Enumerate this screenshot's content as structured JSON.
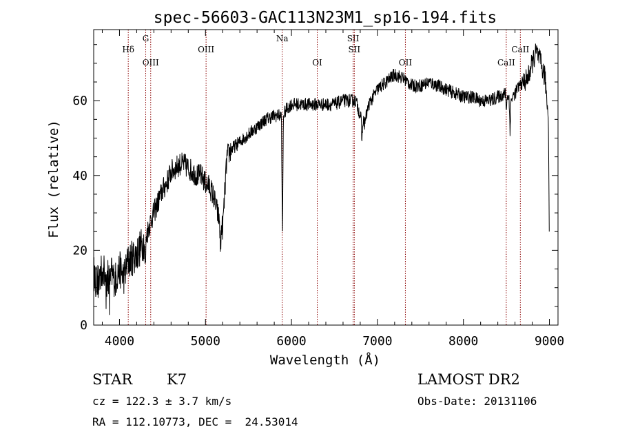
{
  "chart_data": {
    "type": "line",
    "title": "spec-56603-GAC113N23M1_sp16-194.fits",
    "xlabel": "Wavelength (Å)",
    "ylabel": "Flux (relative)",
    "xlim": [
      3700,
      9100
    ],
    "ylim": [
      0,
      79
    ],
    "xticks": [
      4000,
      5000,
      6000,
      7000,
      8000,
      9000
    ],
    "yticks": [
      0,
      20,
      40,
      60
    ],
    "line_color": "#000000",
    "marker_color": "#8b0000",
    "spectrum_anchors": [
      [
        3700,
        14
      ],
      [
        3740,
        11
      ],
      [
        3800,
        15
      ],
      [
        3850,
        12
      ],
      [
        3900,
        14
      ],
      [
        3950,
        12
      ],
      [
        4000,
        15
      ],
      [
        4050,
        13
      ],
      [
        4100,
        17
      ],
      [
        4150,
        18
      ],
      [
        4200,
        19
      ],
      [
        4250,
        21
      ],
      [
        4300,
        23
      ],
      [
        4350,
        27
      ],
      [
        4400,
        30
      ],
      [
        4450,
        33
      ],
      [
        4500,
        36
      ],
      [
        4550,
        38
      ],
      [
        4600,
        41
      ],
      [
        4650,
        42
      ],
      [
        4700,
        43
      ],
      [
        4750,
        43
      ],
      [
        4800,
        42
      ],
      [
        4850,
        41
      ],
      [
        4900,
        40
      ],
      [
        4950,
        40
      ],
      [
        5000,
        38
      ],
      [
        5050,
        37
      ],
      [
        5100,
        34
      ],
      [
        5150,
        29
      ],
      [
        5200,
        26
      ],
      [
        5250,
        45
      ],
      [
        5300,
        47
      ],
      [
        5400,
        49
      ],
      [
        5500,
        51
      ],
      [
        5600,
        53
      ],
      [
        5700,
        55
      ],
      [
        5800,
        56
      ],
      [
        5850,
        56
      ],
      [
        5900,
        56
      ],
      [
        5950,
        58
      ],
      [
        6000,
        59
      ],
      [
        6100,
        59
      ],
      [
        6200,
        59
      ],
      [
        6300,
        59
      ],
      [
        6400,
        59
      ],
      [
        6500,
        59
      ],
      [
        6600,
        60
      ],
      [
        6700,
        60
      ],
      [
        6750,
        60
      ],
      [
        6800,
        56
      ],
      [
        6850,
        54
      ],
      [
        6900,
        59
      ],
      [
        7000,
        63
      ],
      [
        7100,
        65
      ],
      [
        7200,
        67
      ],
      [
        7300,
        66
      ],
      [
        7400,
        64
      ],
      [
        7500,
        64
      ],
      [
        7600,
        65
      ],
      [
        7700,
        64
      ],
      [
        7800,
        63
      ],
      [
        7900,
        62
      ],
      [
        8000,
        61
      ],
      [
        8100,
        61
      ],
      [
        8200,
        60
      ],
      [
        8300,
        60
      ],
      [
        8400,
        61
      ],
      [
        8500,
        62
      ],
      [
        8550,
        60
      ],
      [
        8650,
        64
      ],
      [
        8750,
        66
      ],
      [
        8800,
        70
      ],
      [
        8850,
        73
      ],
      [
        8900,
        70
      ],
      [
        8950,
        66
      ],
      [
        8990,
        55
      ],
      [
        9000,
        15
      ]
    ],
    "absorption_features": [
      [
        4300,
        8
      ],
      [
        5895,
        33
      ],
      [
        6820,
        6
      ],
      [
        8542,
        8
      ],
      [
        8500,
        4
      ],
      [
        5175,
        8
      ]
    ],
    "line_markers": [
      {
        "label": "Hδ",
        "x": 4102,
        "row": 2
      },
      {
        "label": "G",
        "x": 4305,
        "row": 1
      },
      {
        "label": "OIII",
        "x": 4363,
        "row": 3
      },
      {
        "label": "OIII",
        "x": 5007,
        "row": 2
      },
      {
        "label": "Na",
        "x": 5893,
        "row": 1
      },
      {
        "label": "OI",
        "x": 6300,
        "row": 3
      },
      {
        "label": "SII",
        "x": 6717,
        "row": 1
      },
      {
        "label": "SII",
        "x": 6731,
        "row": 2
      },
      {
        "label": "OII",
        "x": 7325,
        "row": 3
      },
      {
        "label": "CaII",
        "x": 8498,
        "row": 3
      },
      {
        "label": "CaII",
        "x": 8662,
        "row": 2
      }
    ]
  },
  "info": {
    "object_class": "STAR",
    "subclass": "K7",
    "survey": "LAMOST DR2",
    "cz": "cz = 122.3 ± 3.7 km/s",
    "obs_date": "Obs-Date: 20131106",
    "coords": "RA = 112.10773, DEC =  24.53014"
  }
}
